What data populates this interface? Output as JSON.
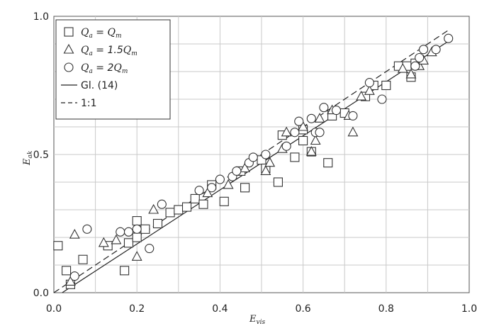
{
  "chart_data": {
    "type": "scatter",
    "title": "",
    "xlim": [
      0.0,
      1.0
    ],
    "ylim": [
      0.0,
      1.0
    ],
    "xticks": [
      0.0,
      0.2,
      0.4,
      0.6,
      0.8,
      1.0
    ],
    "yticks": [
      0.0,
      0.5,
      1.0
    ],
    "xtick_labels": [
      "0.0",
      "0.2",
      "0.4",
      "0.6",
      "0.8",
      "1.0"
    ],
    "ytick_labels": [
      "0.0",
      "0.5",
      "1.0"
    ],
    "xlabel": {
      "main": "E",
      "sub": "vis"
    },
    "ylabel": {
      "main": "E",
      "sub": "ak"
    },
    "grid": true,
    "legend_position": "top-left",
    "series": [
      {
        "marker": "square",
        "label": {
          "a": "Q",
          "a_sub": "a",
          "eq": " = ",
          "coef": "",
          "b": "Q",
          "b_sub": "m"
        },
        "points": [
          [
            0.01,
            0.17
          ],
          [
            0.03,
            0.08
          ],
          [
            0.04,
            0.03
          ],
          [
            0.07,
            0.12
          ],
          [
            0.13,
            0.17
          ],
          [
            0.17,
            0.08
          ],
          [
            0.18,
            0.18
          ],
          [
            0.2,
            0.26
          ],
          [
            0.2,
            0.2
          ],
          [
            0.22,
            0.23
          ],
          [
            0.25,
            0.25
          ],
          [
            0.28,
            0.29
          ],
          [
            0.3,
            0.3
          ],
          [
            0.32,
            0.31
          ],
          [
            0.34,
            0.34
          ],
          [
            0.36,
            0.32
          ],
          [
            0.38,
            0.39
          ],
          [
            0.41,
            0.33
          ],
          [
            0.45,
            0.44
          ],
          [
            0.46,
            0.38
          ],
          [
            0.5,
            0.48
          ],
          [
            0.51,
            0.45
          ],
          [
            0.54,
            0.4
          ],
          [
            0.55,
            0.57
          ],
          [
            0.58,
            0.49
          ],
          [
            0.6,
            0.55
          ],
          [
            0.6,
            0.59
          ],
          [
            0.62,
            0.51
          ],
          [
            0.66,
            0.47
          ],
          [
            0.67,
            0.64
          ],
          [
            0.7,
            0.65
          ],
          [
            0.75,
            0.71
          ],
          [
            0.77,
            0.75
          ],
          [
            0.8,
            0.75
          ],
          [
            0.83,
            0.82
          ],
          [
            0.85,
            0.82
          ],
          [
            0.86,
            0.78
          ],
          [
            0.87,
            0.83
          ]
        ]
      },
      {
        "marker": "triangle",
        "label": {
          "a": "Q",
          "a_sub": "a",
          "eq": " = ",
          "coef": "1.5",
          "b": "Q",
          "b_sub": "m"
        },
        "points": [
          [
            0.04,
            0.04
          ],
          [
            0.05,
            0.21
          ],
          [
            0.12,
            0.18
          ],
          [
            0.15,
            0.19
          ],
          [
            0.2,
            0.13
          ],
          [
            0.24,
            0.3
          ],
          [
            0.37,
            0.36
          ],
          [
            0.42,
            0.39
          ],
          [
            0.46,
            0.45
          ],
          [
            0.51,
            0.44
          ],
          [
            0.52,
            0.47
          ],
          [
            0.55,
            0.52
          ],
          [
            0.56,
            0.58
          ],
          [
            0.6,
            0.6
          ],
          [
            0.62,
            0.51
          ],
          [
            0.63,
            0.55
          ],
          [
            0.64,
            0.63
          ],
          [
            0.67,
            0.66
          ],
          [
            0.71,
            0.64
          ],
          [
            0.72,
            0.58
          ],
          [
            0.74,
            0.71
          ],
          [
            0.76,
            0.73
          ],
          [
            0.84,
            0.81
          ],
          [
            0.86,
            0.79
          ],
          [
            0.88,
            0.82
          ],
          [
            0.89,
            0.84
          ],
          [
            0.91,
            0.87
          ]
        ]
      },
      {
        "marker": "circle",
        "label": {
          "a": "Q",
          "a_sub": "a",
          "eq": " = ",
          "coef": "2",
          "b": "Q",
          "b_sub": "m"
        },
        "points": [
          [
            0.05,
            0.06
          ],
          [
            0.08,
            0.23
          ],
          [
            0.16,
            0.22
          ],
          [
            0.18,
            0.22
          ],
          [
            0.2,
            0.23
          ],
          [
            0.23,
            0.16
          ],
          [
            0.26,
            0.32
          ],
          [
            0.35,
            0.37
          ],
          [
            0.38,
            0.38
          ],
          [
            0.4,
            0.41
          ],
          [
            0.43,
            0.42
          ],
          [
            0.44,
            0.44
          ],
          [
            0.47,
            0.47
          ],
          [
            0.48,
            0.49
          ],
          [
            0.51,
            0.5
          ],
          [
            0.56,
            0.53
          ],
          [
            0.58,
            0.58
          ],
          [
            0.59,
            0.62
          ],
          [
            0.62,
            0.63
          ],
          [
            0.63,
            0.58
          ],
          [
            0.64,
            0.58
          ],
          [
            0.65,
            0.67
          ],
          [
            0.68,
            0.66
          ],
          [
            0.72,
            0.64
          ],
          [
            0.76,
            0.76
          ],
          [
            0.79,
            0.7
          ],
          [
            0.87,
            0.82
          ],
          [
            0.88,
            0.85
          ],
          [
            0.89,
            0.88
          ],
          [
            0.92,
            0.88
          ],
          [
            0.95,
            0.92
          ]
        ]
      }
    ],
    "lines": [
      {
        "label": "Gl. (14)",
        "style": "solid",
        "points": [
          [
            0.02,
            0.0
          ],
          [
            0.95,
            0.91
          ]
        ]
      },
      {
        "label": "1:1",
        "style": "dashed",
        "points": [
          [
            0.0,
            0.0
          ],
          [
            0.95,
            0.95
          ]
        ]
      }
    ]
  }
}
